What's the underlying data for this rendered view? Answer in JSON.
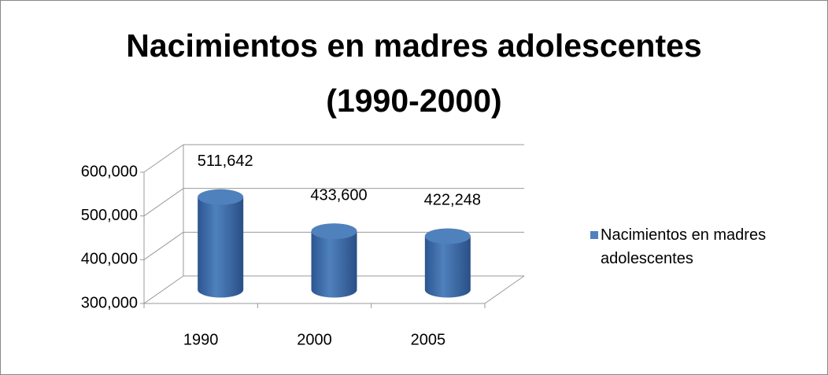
{
  "chart_data": {
    "type": "bar3d",
    "title": "Nacimientos en madres adolescentes (1990-2000)",
    "categories": [
      "1990",
      "2000",
      "2005"
    ],
    "series": [
      {
        "name": "Nacimientos en madres adolescentes",
        "color": "#4f81bd",
        "values": [
          511642,
          433600,
          422248
        ],
        "value_labels": [
          "511,642",
          "433,600",
          "422,248"
        ]
      }
    ],
    "ylim": [
      300000,
      600000
    ],
    "yticks": [
      {
        "value": 300000,
        "label": "300,000"
      },
      {
        "value": 400000,
        "label": "400,000"
      },
      {
        "value": 500000,
        "label": "500,000"
      },
      {
        "value": 600000,
        "label": "600,000"
      }
    ],
    "grid": true,
    "legend": "right"
  }
}
